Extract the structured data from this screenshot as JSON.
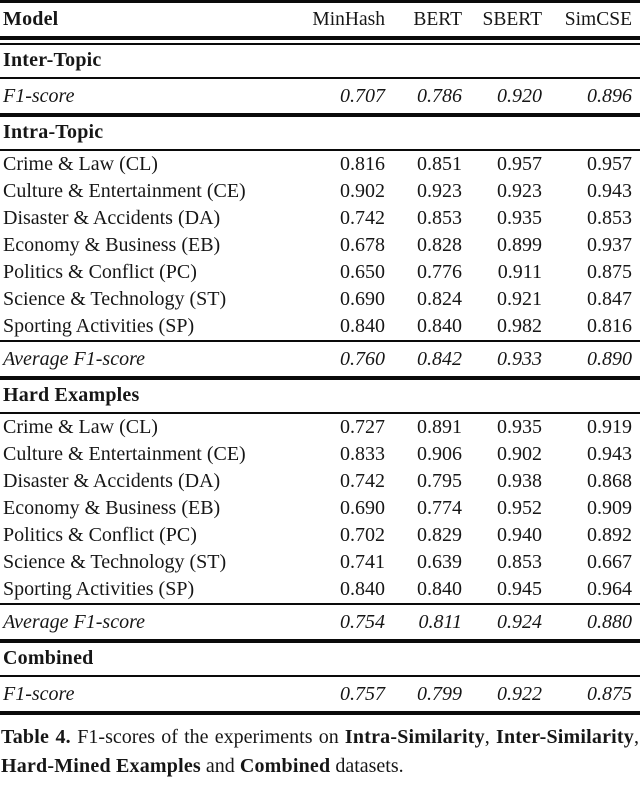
{
  "table": {
    "columns": [
      "Model",
      "MinHash",
      "BERT",
      "SBERT",
      "SimCSE"
    ],
    "sections": [
      {
        "title": "Inter-Topic",
        "rows": [
          {
            "label": "F1-score",
            "italic": true,
            "values": [
              "0.707",
              "0.786",
              "0.920",
              "0.896"
            ]
          }
        ]
      },
      {
        "title": "Intra-Topic",
        "rows": [
          {
            "label": "Crime & Law (CL)",
            "values": [
              "0.816",
              "0.851",
              "0.957",
              "0.957"
            ]
          },
          {
            "label": "Culture & Entertainment (CE)",
            "values": [
              "0.902",
              "0.923",
              "0.923",
              "0.943"
            ]
          },
          {
            "label": "Disaster & Accidents (DA)",
            "values": [
              "0.742",
              "0.853",
              "0.935",
              "0.853"
            ]
          },
          {
            "label": "Economy & Business (EB)",
            "values": [
              "0.678",
              "0.828",
              "0.899",
              "0.937"
            ]
          },
          {
            "label": "Politics & Conflict (PC)",
            "values": [
              "0.650",
              "0.776",
              "0.911",
              "0.875"
            ]
          },
          {
            "label": "Science & Technology (ST)",
            "values": [
              "0.690",
              "0.824",
              "0.921",
              "0.847"
            ]
          },
          {
            "label": "Sporting Activities (SP)",
            "values": [
              "0.840",
              "0.840",
              "0.982",
              "0.816"
            ]
          },
          {
            "label": "Average F1-score",
            "italic": true,
            "values": [
              "0.760",
              "0.842",
              "0.933",
              "0.890"
            ]
          }
        ]
      },
      {
        "title": "Hard Examples",
        "rows": [
          {
            "label": "Crime & Law (CL)",
            "values": [
              "0.727",
              "0.891",
              "0.935",
              "0.919"
            ]
          },
          {
            "label": "Culture & Entertainment (CE)",
            "values": [
              "0.833",
              "0.906",
              "0.902",
              "0.943"
            ]
          },
          {
            "label": "Disaster & Accidents (DA)",
            "values": [
              "0.742",
              "0.795",
              "0.938",
              "0.868"
            ]
          },
          {
            "label": "Economy & Business (EB)",
            "values": [
              "0.690",
              "0.774",
              "0.952",
              "0.909"
            ]
          },
          {
            "label": "Politics & Conflict (PC)",
            "values": [
              "0.702",
              "0.829",
              "0.940",
              "0.892"
            ]
          },
          {
            "label": "Science & Technology (ST)",
            "values": [
              "0.741",
              "0.639",
              "0.853",
              "0.667"
            ]
          },
          {
            "label": "Sporting Activities (SP)",
            "values": [
              "0.840",
              "0.840",
              "0.945",
              "0.964"
            ]
          },
          {
            "label": "Average F1-score",
            "italic": true,
            "values": [
              "0.754",
              "0.811",
              "0.924",
              "0.880"
            ]
          }
        ]
      },
      {
        "title": "Combined",
        "rows": [
          {
            "label": "F1-score",
            "italic": true,
            "values": [
              "0.757",
              "0.799",
              "0.922",
              "0.875"
            ]
          }
        ]
      }
    ]
  },
  "caption": {
    "segments": [
      {
        "text": "Table 4. ",
        "bold": true
      },
      {
        "text": " F1-scores of the experiments on ",
        "bold": false
      },
      {
        "text": "Intra-Similarity",
        "bold": true
      },
      {
        "text": ", ",
        "bold": false
      },
      {
        "text": "Inter-Similarity",
        "bold": true
      },
      {
        "text": ", ",
        "bold": false
      },
      {
        "text": "Hard-Mined Examples",
        "bold": true
      },
      {
        "text": " and ",
        "bold": false
      },
      {
        "text": "Combined",
        "bold": true
      },
      {
        "text": " datasets.",
        "bold": false
      }
    ]
  }
}
